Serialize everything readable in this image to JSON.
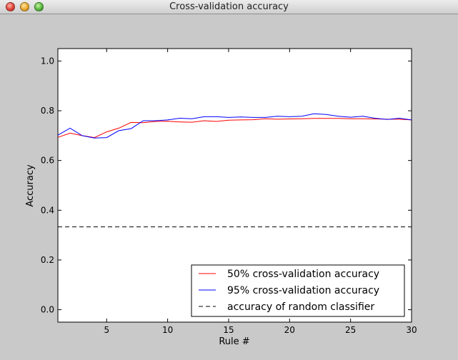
{
  "window": {
    "title": "Cross-validation accuracy",
    "buttons": [
      "close-button",
      "minimize-button",
      "zoom-button"
    ]
  },
  "chart_data": {
    "type": "line",
    "title": "",
    "xlabel": "Rule #",
    "ylabel": "Accuracy",
    "xlim": [
      1,
      30
    ],
    "ylim": [
      -0.05,
      1.05
    ],
    "xticks": [
      5,
      10,
      15,
      20,
      25,
      30
    ],
    "yticks": [
      0.0,
      0.2,
      0.4,
      0.6,
      0.8,
      1.0
    ],
    "ytick_labels": [
      "0.0",
      "0.2",
      "0.4",
      "0.6",
      "0.8",
      "1.0"
    ],
    "grid": false,
    "legend_position": "lower-right",
    "x": [
      1,
      2,
      3,
      4,
      5,
      6,
      7,
      8,
      9,
      10,
      11,
      12,
      13,
      14,
      15,
      16,
      17,
      18,
      19,
      20,
      21,
      22,
      23,
      24,
      25,
      26,
      27,
      28,
      29,
      30
    ],
    "series": [
      {
        "name": "50% cross-validation accuracy",
        "color": "#ff0000",
        "style": "solid",
        "values": [
          0.693,
          0.71,
          0.7,
          0.692,
          0.715,
          0.73,
          0.753,
          0.752,
          0.757,
          0.758,
          0.755,
          0.754,
          0.76,
          0.757,
          0.762,
          0.763,
          0.764,
          0.768,
          0.766,
          0.767,
          0.768,
          0.769,
          0.769,
          0.769,
          0.768,
          0.768,
          0.767,
          0.766,
          0.766,
          0.763
        ]
      },
      {
        "name": "95% cross-validation accuracy",
        "color": "#0000ff",
        "style": "solid",
        "values": [
          0.702,
          0.73,
          0.7,
          0.69,
          0.692,
          0.72,
          0.728,
          0.76,
          0.76,
          0.763,
          0.77,
          0.768,
          0.776,
          0.776,
          0.773,
          0.775,
          0.773,
          0.773,
          0.778,
          0.776,
          0.778,
          0.788,
          0.785,
          0.778,
          0.774,
          0.778,
          0.77,
          0.765,
          0.77,
          0.763
        ]
      },
      {
        "name": "accuracy of random classifier",
        "color": "#000000",
        "style": "dashed",
        "values": [
          0.333,
          0.333,
          0.333,
          0.333,
          0.333,
          0.333,
          0.333,
          0.333,
          0.333,
          0.333,
          0.333,
          0.333,
          0.333,
          0.333,
          0.333,
          0.333,
          0.333,
          0.333,
          0.333,
          0.333,
          0.333,
          0.333,
          0.333,
          0.333,
          0.333,
          0.333,
          0.333,
          0.333,
          0.333,
          0.333
        ]
      }
    ]
  }
}
